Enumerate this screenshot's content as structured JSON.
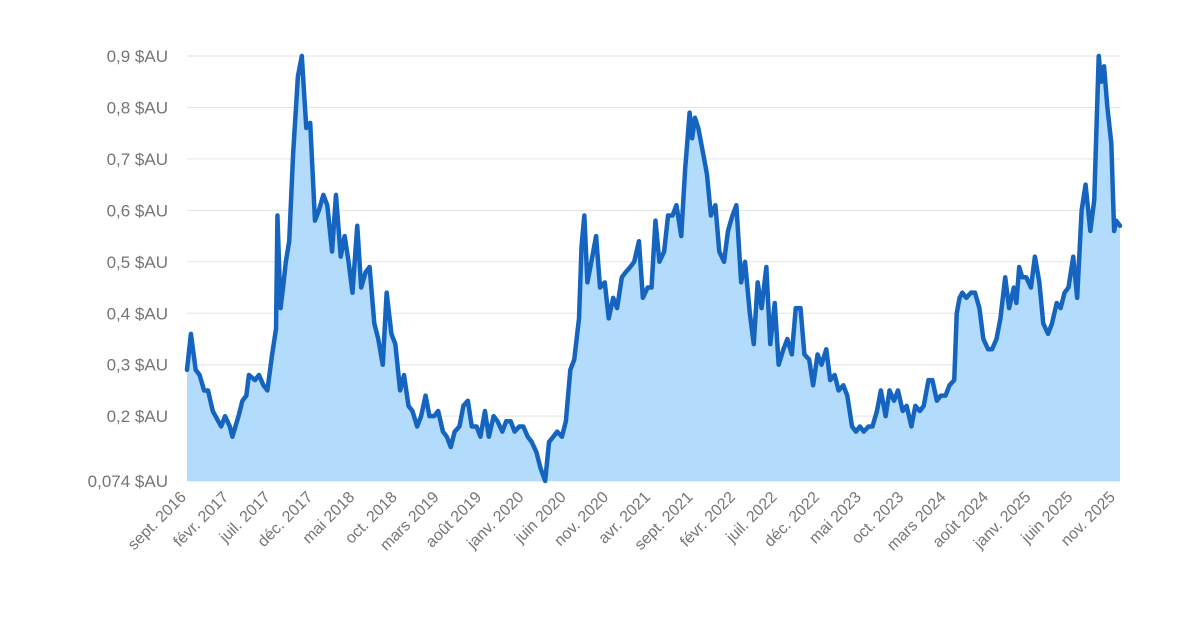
{
  "colors": {
    "line": "#1565c0",
    "area": "#b3dbfc",
    "grid": "#e3e3e3",
    "tick_text": "#757575"
  },
  "chart_data": {
    "type": "area",
    "title": "",
    "xlabel": "",
    "ylabel": "",
    "grid": true,
    "legend": "none",
    "y_ticks": [
      {
        "value": 0.074,
        "label": "0,074 $AU"
      },
      {
        "value": 0.2,
        "label": "0,2 $AU"
      },
      {
        "value": 0.3,
        "label": "0,3 $AU"
      },
      {
        "value": 0.4,
        "label": "0,4 $AU"
      },
      {
        "value": 0.5,
        "label": "0,5 $AU"
      },
      {
        "value": 0.6,
        "label": "0,6 $AU"
      },
      {
        "value": 0.7,
        "label": "0,7 $AU"
      },
      {
        "value": 0.8,
        "label": "0,8 $AU"
      },
      {
        "value": 0.9,
        "label": "0,9 $AU"
      }
    ],
    "ylim": [
      0.074,
      0.9
    ],
    "x_ticks": [
      {
        "date": "2016-09",
        "label": "sept. 2016"
      },
      {
        "date": "2017-02",
        "label": "févr. 2017"
      },
      {
        "date": "2017-07",
        "label": "juil. 2017"
      },
      {
        "date": "2017-12",
        "label": "déc. 2017"
      },
      {
        "date": "2018-05",
        "label": "mai 2018"
      },
      {
        "date": "2018-10",
        "label": "oct. 2018"
      },
      {
        "date": "2019-03",
        "label": "mars 2019"
      },
      {
        "date": "2019-08",
        "label": "août 2019"
      },
      {
        "date": "2020-01",
        "label": "janv. 2020"
      },
      {
        "date": "2020-06",
        "label": "juin 2020"
      },
      {
        "date": "2020-11",
        "label": "nov. 2020"
      },
      {
        "date": "2021-04",
        "label": "avr. 2021"
      },
      {
        "date": "2021-09",
        "label": "sept. 2021"
      },
      {
        "date": "2022-02",
        "label": "févr. 2022"
      },
      {
        "date": "2022-07",
        "label": "juil. 2022"
      },
      {
        "date": "2022-12",
        "label": "déc. 2022"
      },
      {
        "date": "2023-05",
        "label": "mai 2023"
      },
      {
        "date": "2023-10",
        "label": "oct. 2023"
      },
      {
        "date": "2024-03",
        "label": "mars 2024"
      },
      {
        "date": "2024-08",
        "label": "août 2024"
      },
      {
        "date": "2025-01",
        "label": "janv. 2025"
      },
      {
        "date": "2025-06",
        "label": "juin 2025"
      },
      {
        "date": "2025-11",
        "label": "nov. 2025"
      }
    ],
    "series": [
      {
        "points": [
          [
            "2016-08",
            0.29
          ],
          [
            "2016-08-15",
            0.36
          ],
          [
            "2016-09",
            0.29
          ],
          [
            "2016-09-15",
            0.28
          ],
          [
            "2016-10",
            0.25
          ],
          [
            "2016-10-15",
            0.25
          ],
          [
            "2016-11",
            0.21
          ],
          [
            "2016-12",
            0.18
          ],
          [
            "2016-12-15",
            0.2
          ],
          [
            "2017-01",
            0.18
          ],
          [
            "2017-01-10",
            0.16
          ],
          [
            "2017-02",
            0.2
          ],
          [
            "2017-02-15",
            0.23
          ],
          [
            "2017-03",
            0.24
          ],
          [
            "2017-03-10",
            0.28
          ],
          [
            "2017-04",
            0.27
          ],
          [
            "2017-04-15",
            0.28
          ],
          [
            "2017-05",
            0.26
          ],
          [
            "2017-05-15",
            0.25
          ],
          [
            "2017-06",
            0.32
          ],
          [
            "2017-06-15",
            0.37
          ],
          [
            "2017-06-20",
            0.59
          ],
          [
            "2017-07",
            0.41
          ],
          [
            "2017-07-10",
            0.45
          ],
          [
            "2017-07-20",
            0.5
          ],
          [
            "2017-08",
            0.54
          ],
          [
            "2017-08-15",
            0.71
          ],
          [
            "2017-09",
            0.86
          ],
          [
            "2017-09-15",
            0.9
          ],
          [
            "2017-10",
            0.76
          ],
          [
            "2017-10-15",
            0.77
          ],
          [
            "2017-11",
            0.58
          ],
          [
            "2017-11-15",
            0.6
          ],
          [
            "2017-12",
            0.63
          ],
          [
            "2017-12-15",
            0.61
          ],
          [
            "2018-01",
            0.52
          ],
          [
            "2018-01-15",
            0.63
          ],
          [
            "2018-02",
            0.51
          ],
          [
            "2018-02-15",
            0.55
          ],
          [
            "2018-03",
            0.5
          ],
          [
            "2018-03-15",
            0.44
          ],
          [
            "2018-04",
            0.57
          ],
          [
            "2018-04-15",
            0.45
          ],
          [
            "2018-05",
            0.48
          ],
          [
            "2018-05-15",
            0.49
          ],
          [
            "2018-06",
            0.38
          ],
          [
            "2018-06-15",
            0.35
          ],
          [
            "2018-07",
            0.3
          ],
          [
            "2018-07-15",
            0.44
          ],
          [
            "2018-08",
            0.36
          ],
          [
            "2018-08-15",
            0.34
          ],
          [
            "2018-09",
            0.25
          ],
          [
            "2018-09-15",
            0.28
          ],
          [
            "2018-10",
            0.22
          ],
          [
            "2018-10-15",
            0.21
          ],
          [
            "2018-11",
            0.18
          ],
          [
            "2018-11-15",
            0.2
          ],
          [
            "2018-12",
            0.24
          ],
          [
            "2018-12-15",
            0.2
          ],
          [
            "2019-01",
            0.2
          ],
          [
            "2019-01-15",
            0.21
          ],
          [
            "2019-02",
            0.17
          ],
          [
            "2019-02-15",
            0.16
          ],
          [
            "2019-03",
            0.14
          ],
          [
            "2019-03-15",
            0.17
          ],
          [
            "2019-04",
            0.18
          ],
          [
            "2019-04-15",
            0.22
          ],
          [
            "2019-05",
            0.23
          ],
          [
            "2019-05-15",
            0.18
          ],
          [
            "2019-06",
            0.18
          ],
          [
            "2019-06-15",
            0.16
          ],
          [
            "2019-07",
            0.21
          ],
          [
            "2019-07-15",
            0.16
          ],
          [
            "2019-08",
            0.2
          ],
          [
            "2019-08-15",
            0.19
          ],
          [
            "2019-09",
            0.17
          ],
          [
            "2019-09-15",
            0.19
          ],
          [
            "2019-10",
            0.19
          ],
          [
            "2019-10-15",
            0.17
          ],
          [
            "2019-11",
            0.18
          ],
          [
            "2019-11-15",
            0.18
          ],
          [
            "2019-12",
            0.16
          ],
          [
            "2019-12-15",
            0.15
          ],
          [
            "2020-01",
            0.13
          ],
          [
            "2020-01-15",
            0.1
          ],
          [
            "2020-02",
            0.074
          ],
          [
            "2020-02-15",
            0.15
          ],
          [
            "2020-03",
            0.16
          ],
          [
            "2020-03-15",
            0.17
          ],
          [
            "2020-04",
            0.16
          ],
          [
            "2020-04-15",
            0.19
          ],
          [
            "2020-05",
            0.29
          ],
          [
            "2020-05-15",
            0.31
          ],
          [
            "2020-06",
            0.39
          ],
          [
            "2020-06-10",
            0.53
          ],
          [
            "2020-06-20",
            0.59
          ],
          [
            "2020-07",
            0.46
          ],
          [
            "2020-07-15",
            0.5
          ],
          [
            "2020-08",
            0.55
          ],
          [
            "2020-08-15",
            0.45
          ],
          [
            "2020-09",
            0.46
          ],
          [
            "2020-09-15",
            0.39
          ],
          [
            "2020-10",
            0.43
          ],
          [
            "2020-10-15",
            0.41
          ],
          [
            "2020-11",
            0.47
          ],
          [
            "2020-11-15",
            0.48
          ],
          [
            "2020-12",
            0.49
          ],
          [
            "2020-12-15",
            0.5
          ],
          [
            "2021-01",
            0.54
          ],
          [
            "2021-01-15",
            0.43
          ],
          [
            "2021-02",
            0.45
          ],
          [
            "2021-02-15",
            0.45
          ],
          [
            "2021-03",
            0.58
          ],
          [
            "2021-03-15",
            0.5
          ],
          [
            "2021-04",
            0.52
          ],
          [
            "2021-04-15",
            0.59
          ],
          [
            "2021-05",
            0.59
          ],
          [
            "2021-05-15",
            0.61
          ],
          [
            "2021-06",
            0.55
          ],
          [
            "2021-06-15",
            0.68
          ],
          [
            "2021-07",
            0.79
          ],
          [
            "2021-07-10",
            0.74
          ],
          [
            "2021-07-20",
            0.78
          ],
          [
            "2021-08",
            0.76
          ],
          [
            "2021-08-15",
            0.72
          ],
          [
            "2021-09",
            0.67
          ],
          [
            "2021-09-15",
            0.59
          ],
          [
            "2021-10",
            0.61
          ],
          [
            "2021-10-15",
            0.52
          ],
          [
            "2021-11",
            0.5
          ],
          [
            "2021-11-15",
            0.56
          ],
          [
            "2021-12",
            0.59
          ],
          [
            "2021-12-15",
            0.61
          ],
          [
            "2022-01",
            0.46
          ],
          [
            "2022-01-15",
            0.5
          ],
          [
            "2022-02",
            0.4
          ],
          [
            "2022-02-15",
            0.34
          ],
          [
            "2022-03",
            0.46
          ],
          [
            "2022-03-15",
            0.41
          ],
          [
            "2022-04",
            0.49
          ],
          [
            "2022-04-15",
            0.34
          ],
          [
            "2022-05",
            0.42
          ],
          [
            "2022-05-15",
            0.3
          ],
          [
            "2022-06",
            0.33
          ],
          [
            "2022-06-15",
            0.35
          ],
          [
            "2022-07",
            0.32
          ],
          [
            "2022-07-15",
            0.41
          ],
          [
            "2022-08",
            0.41
          ],
          [
            "2022-08-15",
            0.32
          ],
          [
            "2022-09",
            0.31
          ],
          [
            "2022-09-15",
            0.26
          ],
          [
            "2022-10",
            0.32
          ],
          [
            "2022-10-15",
            0.3
          ],
          [
            "2022-11",
            0.33
          ],
          [
            "2022-11-15",
            0.27
          ],
          [
            "2022-12",
            0.28
          ],
          [
            "2022-12-15",
            0.25
          ],
          [
            "2023-01",
            0.26
          ],
          [
            "2023-01-15",
            0.24
          ],
          [
            "2023-02",
            0.18
          ],
          [
            "2023-02-15",
            0.17
          ],
          [
            "2023-03",
            0.18
          ],
          [
            "2023-03-15",
            0.17
          ],
          [
            "2023-04",
            0.18
          ],
          [
            "2023-04-15",
            0.18
          ],
          [
            "2023-05",
            0.21
          ],
          [
            "2023-05-15",
            0.25
          ],
          [
            "2023-06",
            0.2
          ],
          [
            "2023-06-15",
            0.25
          ],
          [
            "2023-07",
            0.23
          ],
          [
            "2023-07-15",
            0.25
          ],
          [
            "2023-08",
            0.21
          ],
          [
            "2023-08-15",
            0.22
          ],
          [
            "2023-09",
            0.18
          ],
          [
            "2023-09-15",
            0.22
          ],
          [
            "2023-10",
            0.21
          ],
          [
            "2023-10-15",
            0.22
          ],
          [
            "2023-11",
            0.27
          ],
          [
            "2023-11-15",
            0.27
          ],
          [
            "2023-12",
            0.23
          ],
          [
            "2023-12-15",
            0.24
          ],
          [
            "2024-01",
            0.24
          ],
          [
            "2024-01-15",
            0.26
          ],
          [
            "2024-02",
            0.27
          ],
          [
            "2024-02-10",
            0.4
          ],
          [
            "2024-02-20",
            0.43
          ],
          [
            "2024-03",
            0.44
          ],
          [
            "2024-03-15",
            0.43
          ],
          [
            "2024-04",
            0.44
          ],
          [
            "2024-04-15",
            0.44
          ],
          [
            "2024-05",
            0.41
          ],
          [
            "2024-05-15",
            0.35
          ],
          [
            "2024-06",
            0.33
          ],
          [
            "2024-06-15",
            0.33
          ],
          [
            "2024-07",
            0.35
          ],
          [
            "2024-07-15",
            0.39
          ],
          [
            "2024-08",
            0.47
          ],
          [
            "2024-08-15",
            0.41
          ],
          [
            "2024-09",
            0.45
          ],
          [
            "2024-09-10",
            0.42
          ],
          [
            "2024-09-20",
            0.49
          ],
          [
            "2024-10",
            0.47
          ],
          [
            "2024-10-15",
            0.47
          ],
          [
            "2024-11",
            0.45
          ],
          [
            "2024-11-15",
            0.51
          ],
          [
            "2024-12",
            0.46
          ],
          [
            "2024-12-15",
            0.38
          ],
          [
            "2025-01",
            0.36
          ],
          [
            "2025-01-15",
            0.38
          ],
          [
            "2025-02",
            0.42
          ],
          [
            "2025-02-15",
            0.41
          ],
          [
            "2025-03",
            0.44
          ],
          [
            "2025-03-15",
            0.45
          ],
          [
            "2025-04",
            0.51
          ],
          [
            "2025-04-15",
            0.43
          ],
          [
            "2025-05",
            0.6
          ],
          [
            "2025-05-15",
            0.65
          ],
          [
            "2025-06",
            0.56
          ],
          [
            "2025-06-15",
            0.62
          ],
          [
            "2025-07",
            0.9
          ],
          [
            "2025-07-10",
            0.85
          ],
          [
            "2025-07-20",
            0.88
          ],
          [
            "2025-08",
            0.8
          ],
          [
            "2025-08-15",
            0.73
          ],
          [
            "2025-08-25",
            0.56
          ],
          [
            "2025-09",
            0.58
          ],
          [
            "2025-09-15",
            0.57
          ]
        ]
      }
    ]
  }
}
